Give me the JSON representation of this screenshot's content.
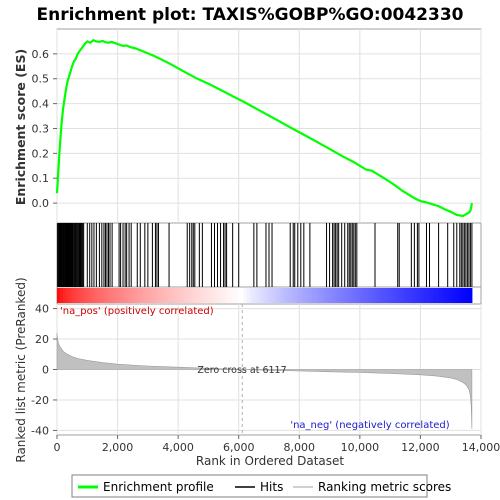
{
  "chart_data": [
    {
      "type": "line",
      "title": "Enrichment plot: TAXIS%GOBP%GO:0042330",
      "ylabel": "Enrichment score (ES)",
      "xlim": [
        0,
        14000
      ],
      "ylim": [
        -0.08,
        0.7
      ],
      "yticks": [
        0.0,
        0.1,
        0.2,
        0.3,
        0.4,
        0.5,
        0.6
      ],
      "ytick_labels": [
        "0.0",
        "0.1",
        "0.2",
        "0.3",
        "0.4",
        "0.5",
        "0.6"
      ],
      "grid": true,
      "series": [
        {
          "name": "Enrichment profile",
          "color": "#00ff00",
          "x": [
            0,
            40,
            80,
            120,
            160,
            200,
            250,
            300,
            350,
            400,
            450,
            500,
            560,
            620,
            680,
            740,
            800,
            860,
            920,
            1000,
            1100,
            1200,
            1300,
            1400,
            1500,
            1600,
            1700,
            1800,
            1900,
            2000,
            2100,
            2200,
            2300,
            2400,
            2600,
            2800,
            3000,
            3200,
            3400,
            3700,
            4000,
            4300,
            4600,
            5000,
            5400,
            5800,
            6200,
            6600,
            7000,
            7400,
            7800,
            8200,
            8600,
            9000,
            9400,
            9800,
            10000,
            10200,
            10400,
            10600,
            10800,
            11000,
            11200,
            11400,
            11600,
            11800,
            12000,
            12200,
            12400,
            12600,
            12800,
            13000,
            13200,
            13300,
            13400,
            13500,
            13600,
            13650,
            13680,
            13700
          ],
          "values": [
            0.04,
            0.12,
            0.2,
            0.27,
            0.33,
            0.38,
            0.42,
            0.46,
            0.49,
            0.51,
            0.53,
            0.55,
            0.57,
            0.58,
            0.6,
            0.61,
            0.62,
            0.63,
            0.64,
            0.65,
            0.645,
            0.655,
            0.65,
            0.648,
            0.652,
            0.647,
            0.645,
            0.648,
            0.644,
            0.64,
            0.635,
            0.632,
            0.634,
            0.628,
            0.622,
            0.612,
            0.602,
            0.592,
            0.58,
            0.562,
            0.542,
            0.522,
            0.502,
            0.48,
            0.455,
            0.43,
            0.405,
            0.378,
            0.352,
            0.325,
            0.298,
            0.272,
            0.245,
            0.218,
            0.19,
            0.165,
            0.15,
            0.135,
            0.13,
            0.115,
            0.1,
            0.085,
            0.068,
            0.05,
            0.035,
            0.02,
            0.008,
            0.003,
            -0.005,
            -0.012,
            -0.025,
            -0.035,
            -0.048,
            -0.05,
            -0.052,
            -0.045,
            -0.038,
            -0.03,
            -0.015,
            0.0
          ]
        }
      ]
    },
    {
      "type": "scatter",
      "subtitle": "Hits",
      "hits": [
        20,
        45,
        70,
        95,
        115,
        140,
        160,
        185,
        205,
        225,
        250,
        270,
        290,
        310,
        330,
        355,
        380,
        400,
        420,
        445,
        470,
        495,
        520,
        550,
        580,
        610,
        640,
        670,
        700,
        730,
        760,
        790,
        820,
        850,
        880,
        1000,
        1080,
        1150,
        1220,
        1300,
        1400,
        1480,
        1550,
        1600,
        1650,
        1700,
        1750,
        1820,
        2050,
        2100,
        2180,
        2250,
        2300,
        2380,
        2450,
        2650,
        2750,
        2900,
        3000,
        3150,
        3250,
        3300,
        3350,
        3700,
        4300,
        4380,
        4450,
        4500,
        4550,
        4700,
        4800,
        5100,
        5200,
        5300,
        5400,
        5500,
        5550,
        5600,
        5800,
        6000,
        6500,
        6600,
        6900,
        7000,
        7100,
        7700,
        7800,
        7850,
        7950,
        8050,
        8150,
        8350,
        8900,
        9000,
        9100,
        9150,
        9200,
        9250,
        9300,
        9400,
        9500,
        9600,
        9650,
        9700,
        9750,
        9800,
        9850,
        9900,
        10500,
        11250,
        11300,
        11700,
        11800,
        11900,
        11950,
        12200,
        12300,
        12600,
        12900,
        13100,
        13200,
        13300,
        13350,
        13400,
        13450,
        13500,
        13550,
        13600,
        13650,
        13700
      ]
    },
    {
      "type": "area",
      "ylabel": "Ranked list metric (PreRanked)",
      "xlabel": "Rank in Ordered Dataset",
      "xlim": [
        0,
        14000
      ],
      "ylim": [
        -43,
        43
      ],
      "yticks": [
        -40,
        -20,
        0,
        20,
        40
      ],
      "ytick_labels": [
        "-40",
        "-20",
        "0",
        "20",
        "40"
      ],
      "xticks": [
        0,
        2000,
        4000,
        6000,
        8000,
        10000,
        12000,
        14000
      ],
      "xtick_labels": [
        "0",
        "2,000",
        "4,000",
        "6,000",
        "8,000",
        "10,000",
        "12,000",
        "14,000"
      ],
      "series": [
        {
          "name": "Ranking metric scores",
          "color": "#c0c0c0",
          "x": [
            0,
            20,
            50,
            100,
            200,
            300,
            500,
            700,
            1000,
            1500,
            2000,
            3000,
            4000,
            5000,
            6117,
            7000,
            8000,
            9000,
            10000,
            11000,
            12000,
            12500,
            13000,
            13200,
            13400,
            13500,
            13600,
            13650,
            13680,
            13700
          ],
          "values": [
            24,
            20,
            17,
            15,
            12,
            10.5,
            8.5,
            7.2,
            6,
            4.5,
            3.5,
            2.3,
            1.5,
            0.8,
            0,
            -0.5,
            -1,
            -1.5,
            -2,
            -2.6,
            -3.5,
            -4.2,
            -5.5,
            -6.5,
            -8.5,
            -10,
            -13,
            -17,
            -25,
            -39
          ]
        }
      ],
      "annotations": [
        "'na_pos' (positively correlated)",
        "Zero cross at 6117",
        "'na_neg' (negatively correlated)"
      ],
      "zero_cross": 6117,
      "total_rank": 13700
    }
  ],
  "legend": {
    "items": [
      {
        "label": "Enrichment profile",
        "color": "#00ff00"
      },
      {
        "label": "Hits",
        "color": "#000000"
      },
      {
        "label": "Ranking metric scores",
        "color": "#c0c0c0"
      }
    ]
  },
  "colors": {
    "positive": "#ff0000",
    "negative": "#0000ff",
    "pos_annotation": "#cc0000",
    "neg_annotation": "#1a1ad0"
  }
}
